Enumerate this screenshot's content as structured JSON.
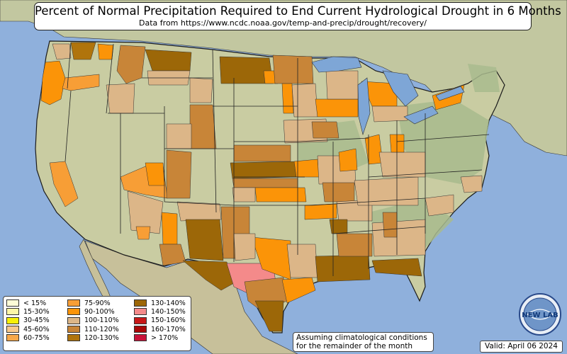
{
  "title": "Percent of Normal Precipitation Required to End Current Hydrological Drought in 6 Months",
  "subtitle": "Data from https://www.ncdc.noaa.gov/temp-and-precip/drought/recovery/",
  "legend": [
    {
      "label": "< 15%",
      "color": "#fdfdd8"
    },
    {
      "label": "15-30%",
      "color": "#fdf6a8"
    },
    {
      "label": "30-45%",
      "color": "#f7f008"
    },
    {
      "label": "45-60%",
      "color": "#f7c98e"
    },
    {
      "label": "60-75%",
      "color": "#f7a84a"
    },
    {
      "label": "75-90%",
      "color": "#f79e36"
    },
    {
      "label": "90-100%",
      "color": "#fb9408"
    },
    {
      "label": "100-110%",
      "color": "#dcb688"
    },
    {
      "label": "110-120%",
      "color": "#c88538"
    },
    {
      "label": "120-130%",
      "color": "#b0740c"
    },
    {
      "label": "130-140%",
      "color": "#9c6708"
    },
    {
      "label": "140-150%",
      "color": "#f48a8a"
    },
    {
      "label": "150-160%",
      "color": "#c81818"
    },
    {
      "label": "160-170%",
      "color": "#a80808"
    },
    {
      "label": "> 170%",
      "color": "#c8143a"
    }
  ],
  "note_line1": "Assuming climatological conditions",
  "note_line2": "for the remainder of the month",
  "valid_text": "Valid: April 06 2024",
  "logo_text": "NEW LAB",
  "colors": {
    "ocean": "#8fb0dc",
    "land": "#c9cca2",
    "terrain_green": "#a7bb8c",
    "lake": "#7ea6d6",
    "border": "#1a1a1a"
  }
}
